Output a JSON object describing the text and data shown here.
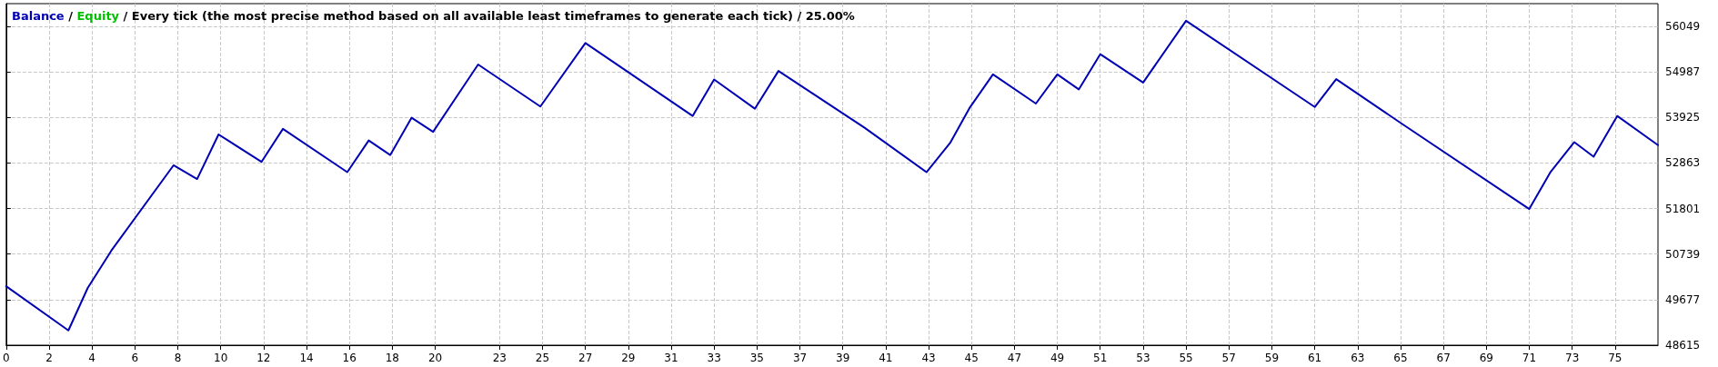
{
  "chart_data": {
    "type": "line",
    "annotations": [
      "/",
      "/"
    ],
    "title": "Every tick (the most precise method based on all available least timeframes to generate each tick) / 25.00%",
    "x": [
      0,
      2.9,
      3.8,
      4.9,
      7.8,
      8.9,
      9.9,
      11.9,
      12.9,
      15.9,
      16.9,
      17.9,
      18.9,
      19.9,
      22,
      24.9,
      27,
      32,
      33,
      34.9,
      36,
      40,
      42.9,
      44,
      44.9,
      46,
      48,
      49,
      50,
      51,
      53,
      55,
      61,
      62,
      65,
      71,
      72,
      73.1,
      74,
      75.1,
      77
    ],
    "series": [
      {
        "name": "Balance",
        "color": "#0000b4",
        "values": [
          49990,
          48960,
          49950,
          50820,
          52810,
          52490,
          53530,
          52890,
          53660,
          52650,
          53390,
          53050,
          53920,
          53590,
          55160,
          54180,
          55660,
          53960,
          54810,
          54130,
          55010,
          53690,
          52650,
          53330,
          54140,
          54930,
          54250,
          54930,
          54580,
          55400,
          54740,
          56180,
          54170,
          54820,
          53800,
          51790,
          52660,
          53350,
          53010,
          53960,
          53280
        ]
      },
      {
        "name": "Equity",
        "color": "#00c000",
        "values": [
          null,
          null,
          null,
          null,
          null,
          null,
          null,
          null,
          null,
          null,
          null,
          null,
          null,
          null,
          null,
          null,
          null,
          null,
          null,
          null,
          null,
          null,
          null,
          null,
          null,
          null,
          null,
          null,
          null,
          null,
          null,
          null,
          null,
          null,
          null,
          null,
          null,
          null,
          null,
          null,
          null
        ]
      }
    ],
    "xlim": [
      0,
      77
    ],
    "xticks": [
      0,
      2,
      4,
      6,
      8,
      10,
      12,
      14,
      16,
      18,
      20,
      23,
      25,
      27,
      29,
      31,
      33,
      35,
      37,
      39,
      41,
      43,
      45,
      47,
      49,
      51,
      53,
      55,
      57,
      59,
      61,
      63,
      65,
      67,
      69,
      71,
      73,
      75
    ],
    "ylim": [
      48615,
      56580
    ],
    "yticks": [
      48615,
      49677,
      50739,
      51801,
      52863,
      53925,
      54987,
      56049
    ],
    "grid": true,
    "legend": "top left",
    "marker": "none",
    "line_style": "solid"
  }
}
